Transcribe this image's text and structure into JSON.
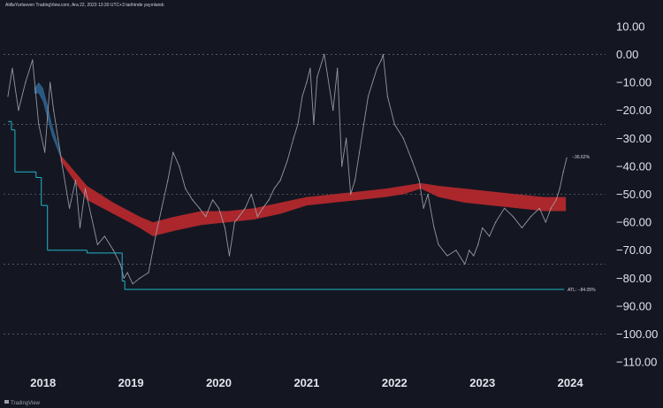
{
  "header": {
    "caption": "AtillaYurtseven TradingView.com, Ara 22, 2023 13:30 UTC+3 tarihinde yayınlandı"
  },
  "footer": {
    "brand": "TradingView"
  },
  "chart_data": {
    "type": "line",
    "ylim": [
      -115,
      15
    ],
    "xlim": [
      2017.55,
      2024.2
    ],
    "y_ticks": [
      "10.00",
      "0.00",
      "−10.00",
      "−20.00",
      "−30.00",
      "−40.00",
      "−50.00",
      "−60.00",
      "−70.00",
      "−80.00",
      "−90.00",
      "−100.00",
      "−110.00"
    ],
    "y_tick_values": [
      10,
      0,
      -10,
      -20,
      -30,
      -40,
      -50,
      -60,
      -70,
      -80,
      -90,
      -100,
      -110
    ],
    "x_ticks": [
      "2018",
      "2019",
      "2020",
      "2021",
      "2022",
      "2023",
      "2024"
    ],
    "x_tick_values": [
      2018.0,
      2019.0,
      2020.0,
      2021.0,
      2022.0,
      2023.0,
      2024.0
    ],
    "dashed_levels": [
      0,
      -25,
      -50,
      -75,
      -100
    ],
    "drawdown_series": {
      "x": [
        2017.6,
        2017.65,
        2017.72,
        2017.8,
        2017.88,
        2017.95,
        2018.02,
        2018.08,
        2018.12,
        2018.17,
        2018.22,
        2018.3,
        2018.37,
        2018.42,
        2018.48,
        2018.55,
        2018.62,
        2018.7,
        2018.8,
        2018.88,
        2018.92,
        2018.96,
        2019.02,
        2019.1,
        2019.2,
        2019.28,
        2019.35,
        2019.42,
        2019.48,
        2019.55,
        2019.62,
        2019.7,
        2019.78,
        2019.85,
        2019.93,
        2020.0,
        2020.07,
        2020.12,
        2020.18,
        2020.23,
        2020.3,
        2020.37,
        2020.44,
        2020.5,
        2020.57,
        2020.63,
        2020.7,
        2020.78,
        2020.85,
        2020.9,
        2020.95,
        2021.0,
        2021.04,
        2021.08,
        2021.12,
        2021.2,
        2021.3,
        2021.35,
        2021.4,
        2021.45,
        2021.5,
        2021.55,
        2021.6,
        2021.65,
        2021.7,
        2021.75,
        2021.8,
        2021.85,
        2021.87,
        2021.92,
        2022.0,
        2022.1,
        2022.2,
        2022.28,
        2022.33,
        2022.38,
        2022.45,
        2022.5,
        2022.6,
        2022.7,
        2022.8,
        2022.85,
        2022.9,
        2022.95,
        2023.0,
        2023.08,
        2023.15,
        2023.25,
        2023.35,
        2023.45,
        2023.55,
        2023.65,
        2023.72,
        2023.78,
        2023.84,
        2023.88,
        2023.92,
        2023.96
      ],
      "y": [
        -15,
        -5,
        -20,
        -10,
        -2,
        -25,
        -35,
        -10,
        -20,
        -30,
        -40,
        -55,
        -45,
        -62,
        -48,
        -58,
        -68,
        -65,
        -70,
        -75,
        -80,
        -78,
        -82,
        -80,
        -78,
        -65,
        -55,
        -45,
        -35,
        -40,
        -48,
        -52,
        -55,
        -58,
        -52,
        -55,
        -62,
        -72,
        -60,
        -58,
        -55,
        -50,
        -58,
        -55,
        -52,
        -48,
        -45,
        -38,
        -30,
        -25,
        -15,
        -10,
        -5,
        -25,
        -8,
        0,
        -20,
        -5,
        -40,
        -30,
        -50,
        -45,
        -35,
        -25,
        -15,
        -10,
        -5,
        -2,
        0,
        -15,
        -25,
        -30,
        -38,
        -45,
        -55,
        -50,
        -62,
        -68,
        -72,
        -70,
        -75,
        -70,
        -72,
        -68,
        -62,
        -65,
        -60,
        -55,
        -58,
        -62,
        -58,
        -55,
        -60,
        -55,
        -52,
        -48,
        -42,
        -37
      ]
    },
    "average_band": {
      "x": [
        2018.2,
        2018.5,
        2018.8,
        2019.1,
        2019.25,
        2019.5,
        2019.8,
        2020.1,
        2020.4,
        2020.7,
        2021.0,
        2021.3,
        2021.6,
        2021.9,
        2022.1,
        2022.3,
        2022.5,
        2022.8,
        2023.1,
        2023.4,
        2023.7,
        2023.95
      ],
      "upper": [
        -36,
        -47,
        -53,
        -58,
        -60,
        -58,
        -56,
        -56,
        -55,
        -53,
        -51,
        -50,
        -49,
        -48,
        -47,
        -46,
        -47,
        -48,
        -49,
        -50,
        -51,
        -51
      ],
      "lower": [
        -38,
        -52,
        -57,
        -62,
        -65,
        -63,
        -61,
        -60,
        -59,
        -57,
        -54,
        -53,
        -52,
        -51,
        -50,
        -48,
        -51,
        -53,
        -54,
        -55,
        -56,
        -56
      ]
    },
    "rising_band": {
      "x": [
        2017.9,
        2017.95,
        2018.0,
        2018.05,
        2018.1,
        2018.15,
        2018.2
      ],
      "upper": [
        -12,
        -10,
        -12,
        -18,
        -25,
        -30,
        -35
      ],
      "lower": [
        -14,
        -14,
        -17,
        -23,
        -29,
        -33,
        -37
      ]
    },
    "cyan_steps": [
      {
        "x1": 2017.6,
        "x2": 2017.64,
        "y": -24
      },
      {
        "x1": 2017.64,
        "x2": 2017.68,
        "y": -27
      },
      {
        "x1": 2017.68,
        "x2": 2017.92,
        "y": -42
      },
      {
        "x1": 2017.92,
        "x2": 2017.98,
        "y": -44
      },
      {
        "x1": 2017.98,
        "x2": 2018.05,
        "y": -54
      },
      {
        "x1": 2018.05,
        "x2": 2018.5,
        "y": -70
      },
      {
        "x1": 2018.5,
        "x2": 2018.9,
        "y": -71
      },
      {
        "x1": 2018.9,
        "x2": 2018.93,
        "y": -81
      },
      {
        "x1": 2018.93,
        "x2": 2023.93,
        "y": -84
      }
    ],
    "current_label": "−36.62%",
    "current_value": -36.62,
    "atl_label": "ATL: −84.05%",
    "atl_value": -84.05,
    "colors": {
      "background": "#141722",
      "grid": "#5a5f6b",
      "drawdown": "#a2a5ad",
      "band_red": "#b3282d",
      "band_blue": "#2c5d87",
      "cyan": "#1fb5c8",
      "axis_text": "#e1e3ea"
    }
  }
}
